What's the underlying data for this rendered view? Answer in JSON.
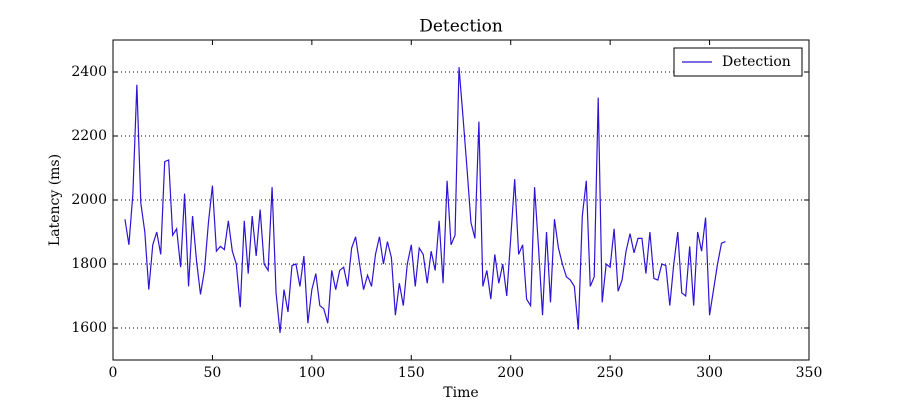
{
  "chart_data": {
    "type": "line",
    "title": "Detection",
    "x_label": "Time",
    "y_label": "Latency (ms)",
    "x": [
      6,
      8,
      10,
      12,
      14,
      16,
      18,
      20,
      22,
      24,
      26,
      28,
      30,
      32,
      34,
      36,
      38,
      40,
      42,
      44,
      46,
      48,
      50,
      52,
      54,
      56,
      58,
      60,
      62,
      64,
      66,
      68,
      70,
      72,
      74,
      76,
      78,
      80,
      82,
      84,
      86,
      88,
      90,
      92,
      94,
      96,
      98,
      100,
      102,
      104,
      106,
      108,
      110,
      112,
      114,
      116,
      118,
      120,
      122,
      124,
      126,
      128,
      130,
      132,
      134,
      136,
      138,
      140,
      142,
      144,
      146,
      148,
      150,
      152,
      154,
      156,
      158,
      160,
      162,
      164,
      166,
      168,
      170,
      172,
      174,
      176,
      178,
      180,
      182,
      184,
      186,
      188,
      190,
      192,
      194,
      196,
      198,
      200,
      202,
      204,
      206,
      208,
      210,
      212,
      214,
      216,
      218,
      220,
      222,
      224,
      226,
      228,
      230,
      232,
      234,
      236,
      238,
      240,
      242,
      244,
      246,
      248,
      250,
      252,
      254,
      256,
      258,
      260,
      262,
      264,
      266,
      268,
      270,
      272,
      274,
      276,
      278,
      280,
      282,
      284,
      286,
      288,
      290,
      292,
      294,
      296,
      298,
      300,
      302,
      304,
      306,
      308
    ],
    "series": [
      {
        "name": "Detection",
        "color": "#2e14d4",
        "values": [
          1940,
          1860,
          2020,
          2360,
          1990,
          1900,
          1720,
          1860,
          1900,
          1830,
          2120,
          2125,
          1890,
          1910,
          1790,
          2020,
          1730,
          1950,
          1810,
          1705,
          1780,
          1930,
          2045,
          1840,
          1855,
          1845,
          1935,
          1840,
          1800,
          1665,
          1935,
          1770,
          1950,
          1825,
          1970,
          1800,
          1780,
          2040,
          1710,
          1585,
          1720,
          1650,
          1795,
          1800,
          1730,
          1825,
          1615,
          1720,
          1770,
          1670,
          1660,
          1615,
          1780,
          1720,
          1780,
          1790,
          1730,
          1850,
          1885,
          1800,
          1720,
          1765,
          1730,
          1830,
          1885,
          1800,
          1870,
          1820,
          1640,
          1740,
          1670,
          1800,
          1860,
          1730,
          1850,
          1830,
          1740,
          1840,
          1780,
          1935,
          1740,
          2060,
          1860,
          1890,
          2415,
          2260,
          2100,
          1930,
          1880,
          2245,
          1730,
          1780,
          1690,
          1830,
          1740,
          1800,
          1700,
          1880,
          2065,
          1830,
          1860,
          1690,
          1670,
          2040,
          1850,
          1640,
          1900,
          1680,
          1940,
          1850,
          1800,
          1760,
          1750,
          1730,
          1595,
          1950,
          2060,
          1730,
          1760,
          2320,
          1680,
          1800,
          1790,
          1910,
          1715,
          1750,
          1840,
          1895,
          1835,
          1880,
          1880,
          1770,
          1900,
          1755,
          1750,
          1800,
          1795,
          1670,
          1800,
          1900,
          1710,
          1700,
          1855,
          1670,
          1900,
          1840,
          1945,
          1640,
          1720,
          1800,
          1865,
          1870
        ]
      }
    ],
    "xlim": [
      0,
      350
    ],
    "xticks": [
      0,
      50,
      100,
      150,
      200,
      250,
      300,
      350
    ],
    "ylim": [
      1500,
      2500
    ],
    "yticks": [
      1600,
      1800,
      2000,
      2200,
      2400
    ],
    "grid": true,
    "legend": "upper right"
  }
}
